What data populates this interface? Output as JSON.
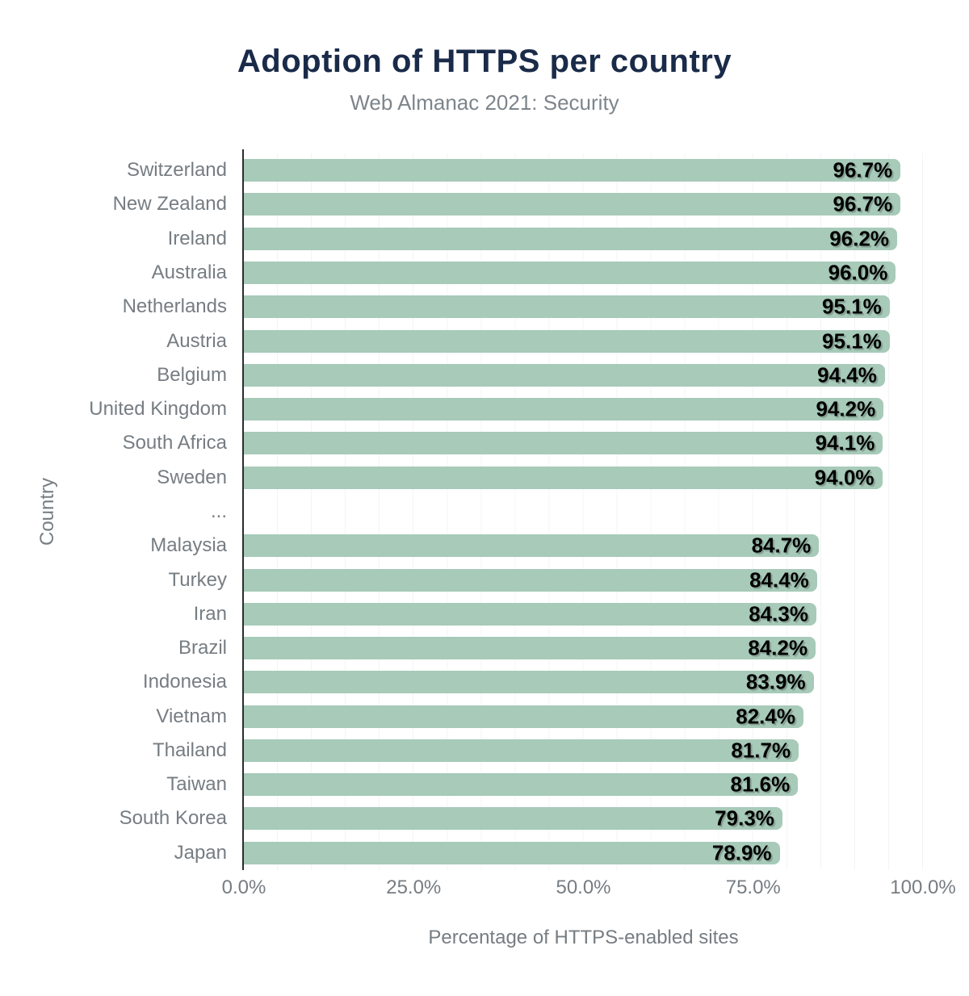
{
  "chart_data": {
    "type": "bar",
    "orientation": "horizontal",
    "title": "Adoption of HTTPS per country",
    "subtitle": "Web Almanac 2021: Security",
    "xlabel": "Percentage of HTTPS-enabled sites",
    "ylabel": "Country",
    "xlim": [
      0,
      100
    ],
    "x_ticks": [
      "0.0%",
      "25.0%",
      "50.0%",
      "75.0%",
      "100.0%"
    ],
    "x_tick_positions_pct": [
      0,
      25,
      50,
      75,
      100
    ],
    "grid_interval_pct": 5,
    "grid_on": true,
    "legend": "none",
    "bar_color": "#a7cab9",
    "title_color": "#1a2b49",
    "subtitle_color": "#7d858b",
    "axis_label_color": "#767d82",
    "value_label_color": "#000000",
    "categories": [
      "Switzerland",
      "New Zealand",
      "Ireland",
      "Australia",
      "Netherlands",
      "Austria",
      "Belgium",
      "United Kingdom",
      "South Africa",
      "Sweden",
      "...",
      "Malaysia",
      "Turkey",
      "Iran",
      "Brazil",
      "Indonesia",
      "Vietnam",
      "Thailand",
      "Taiwan",
      "South Korea",
      "Japan"
    ],
    "values": [
      96.7,
      96.7,
      96.2,
      96.0,
      95.1,
      95.1,
      94.4,
      94.2,
      94.1,
      94.0,
      null,
      84.7,
      84.4,
      84.3,
      84.2,
      83.9,
      82.4,
      81.7,
      81.6,
      79.3,
      78.9
    ],
    "value_labels": [
      "96.7%",
      "96.7%",
      "96.2%",
      "96.0%",
      "95.1%",
      "95.1%",
      "94.4%",
      "94.2%",
      "94.1%",
      "94.0%",
      "",
      "84.7%",
      "84.4%",
      "84.3%",
      "84.2%",
      "83.9%",
      "82.4%",
      "81.7%",
      "81.6%",
      "79.3%",
      "78.9%"
    ]
  }
}
